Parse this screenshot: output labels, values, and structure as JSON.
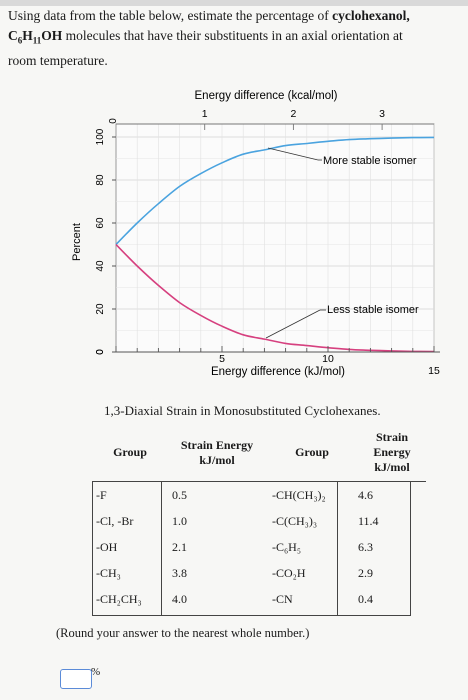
{
  "question": {
    "line1_pre": "Using data from the table below, estimate the percentage of ",
    "line1_bold": "cyclohexanol,",
    "formula_c": "C",
    "formula_c_sub": "6",
    "formula_h": "H",
    "formula_h_sub": "11",
    "formula_oh": "OH",
    "line2_rest": " molecules that have their substituents in an axial orientation at",
    "line3": "room temperature."
  },
  "chart_data": {
    "type": "line",
    "top_axis_label": "Energy difference (kcal/mol)",
    "top_ticks": [
      "1",
      "2",
      "3"
    ],
    "bottom_axis_label": "Energy difference (kJ/mol)",
    "bottom_ticks": [
      "0",
      "5",
      "10",
      "15"
    ],
    "ylabel": "Percent",
    "y_ticks": [
      "100",
      "80",
      "60",
      "40",
      "20",
      "0"
    ],
    "xlim": [
      0,
      15
    ],
    "ylim": [
      0,
      100
    ],
    "grid": true,
    "series": [
      {
        "name": "More stable isomer",
        "color": "#4aa3df",
        "x": [
          0,
          1,
          2,
          3,
          4,
          5,
          6,
          7,
          8,
          9,
          10,
          11,
          12,
          13,
          14,
          15
        ],
        "values": [
          50,
          60,
          69,
          77,
          83,
          88,
          92,
          94,
          96,
          97,
          98,
          98.8,
          99.2,
          99.5,
          99.7,
          99.8
        ]
      },
      {
        "name": "Less stable isomer",
        "color": "#d6407f",
        "x": [
          0,
          1,
          2,
          3,
          4,
          5,
          6,
          7,
          8,
          9,
          10,
          11,
          12,
          13,
          14,
          15
        ],
        "values": [
          50,
          40,
          31,
          23,
          17,
          12,
          8,
          6,
          4,
          3,
          2,
          1.2,
          0.8,
          0.5,
          0.3,
          0.2
        ]
      }
    ]
  },
  "table": {
    "title": "1,3-Diaxial Strain in Monosubstituted Cyclohexanes.",
    "headers": [
      "Group",
      "Strain Energy kJ/mol",
      "Group",
      "Strain Energy kJ/mol"
    ],
    "rows": [
      [
        "-F",
        "0.5",
        "-CH(CH₃)₂",
        "4.6"
      ],
      [
        "-Cl, -Br",
        "1.0",
        "-C(CH₃)₃",
        "11.4"
      ],
      [
        "-OH",
        "2.1",
        "-C₆H₅",
        "6.3"
      ],
      [
        "-CH₃",
        "3.8",
        "-CO₂H",
        "2.9"
      ],
      [
        "-CH₂CH₃",
        "4.0",
        "-CN",
        "0.4"
      ]
    ]
  },
  "footer": {
    "instruction": "(Round your answer to the nearest whole number.)",
    "answer_value": "",
    "unit": "%"
  }
}
